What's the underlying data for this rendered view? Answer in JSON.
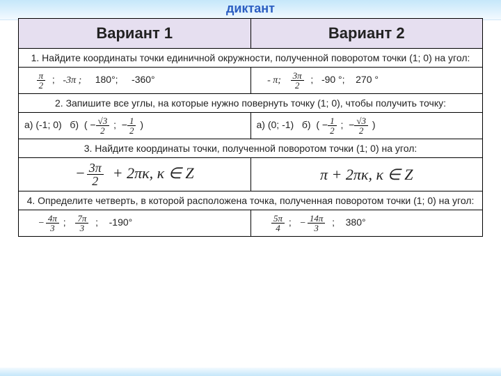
{
  "title": "диктант",
  "header": {
    "variant1": "Вариант 1",
    "variant2": "Вариант 2"
  },
  "q1": {
    "text": "1. Найдите координаты точки единичной окружности, полученной поворотом точки (1; 0) на угол:",
    "v1": {
      "a2": "-3π ;",
      "a3": "180°;",
      "a4": "-360°"
    },
    "v2": {
      "a1": "- π;",
      "a3": "-90 °;",
      "a4": "270 °"
    }
  },
  "q2": {
    "text": "2. Запишите все углы, на которые нужно повернуть точку (1; 0), чтобы получить точку:",
    "v1": {
      "a": "а) (-1; 0)",
      "b": "б)"
    },
    "v2": {
      "a": "а) (0; -1)",
      "b": "б)"
    }
  },
  "q3": {
    "text": "3. Найдите координаты точки, полученной поворотом точки (1; 0) на  угол:"
  },
  "q4": {
    "text": "4. Определите четверть, в которой расположена точка, полученная поворотом точки (1; 0) на угол:",
    "v1": {
      "a3": "-190°"
    },
    "v2": {
      "a3": "380°"
    }
  }
}
